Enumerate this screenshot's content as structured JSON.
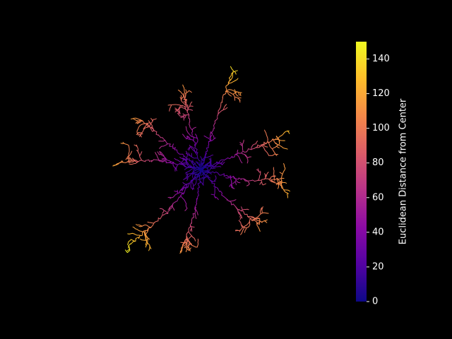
{
  "chart_data": {
    "type": "scatter",
    "title": "",
    "xlabel": "",
    "ylabel": "",
    "axes_visible": false,
    "background": "#000000",
    "colormap": "plasma",
    "color_stops": [
      "#0d0887",
      "#5302a3",
      "#8b0aa5",
      "#b83289",
      "#db5c68",
      "#f48849",
      "#febd2a",
      "#f0f921"
    ],
    "colorbar": {
      "label": "Euclidean Distance from Center",
      "range": [
        0,
        150
      ],
      "ticks": [
        0,
        20,
        40,
        60,
        80,
        100,
        120,
        140
      ],
      "tick_labels": [
        "0",
        "20",
        "40",
        "60",
        "80",
        "100",
        "120",
        "140"
      ],
      "tick_color": "#ffffff"
    },
    "xlim": [
      -120,
      130
    ],
    "ylim": [
      -130,
      130
    ],
    "center": [
      0,
      0
    ],
    "branches": [
      {
        "name": "upper-right",
        "tip": [
          42,
          128
        ],
        "bend": [
          22,
          70
        ]
      },
      {
        "name": "upper",
        "tip": [
          -22,
          98
        ],
        "bend": [
          -12,
          45
        ]
      },
      {
        "name": "upper-left",
        "tip": [
          -82,
          66
        ],
        "bend": [
          -40,
          30
        ]
      },
      {
        "name": "left",
        "tip": [
          -108,
          10
        ],
        "bend": [
          -55,
          12
        ]
      },
      {
        "name": "right",
        "tip": [
          105,
          42
        ],
        "bend": [
          55,
          22
        ]
      },
      {
        "name": "lower-right",
        "tip": [
          78,
          -72
        ],
        "bend": [
          35,
          -40
        ]
      },
      {
        "name": "right-lower",
        "tip": [
          112,
          -12
        ],
        "bend": [
          65,
          -15
        ]
      },
      {
        "name": "lower-left",
        "tip": [
          -100,
          -102
        ],
        "bend": [
          -45,
          -55
        ]
      },
      {
        "name": "lower",
        "tip": [
          -28,
          -110
        ],
        "bend": [
          -8,
          -55
        ]
      }
    ]
  }
}
